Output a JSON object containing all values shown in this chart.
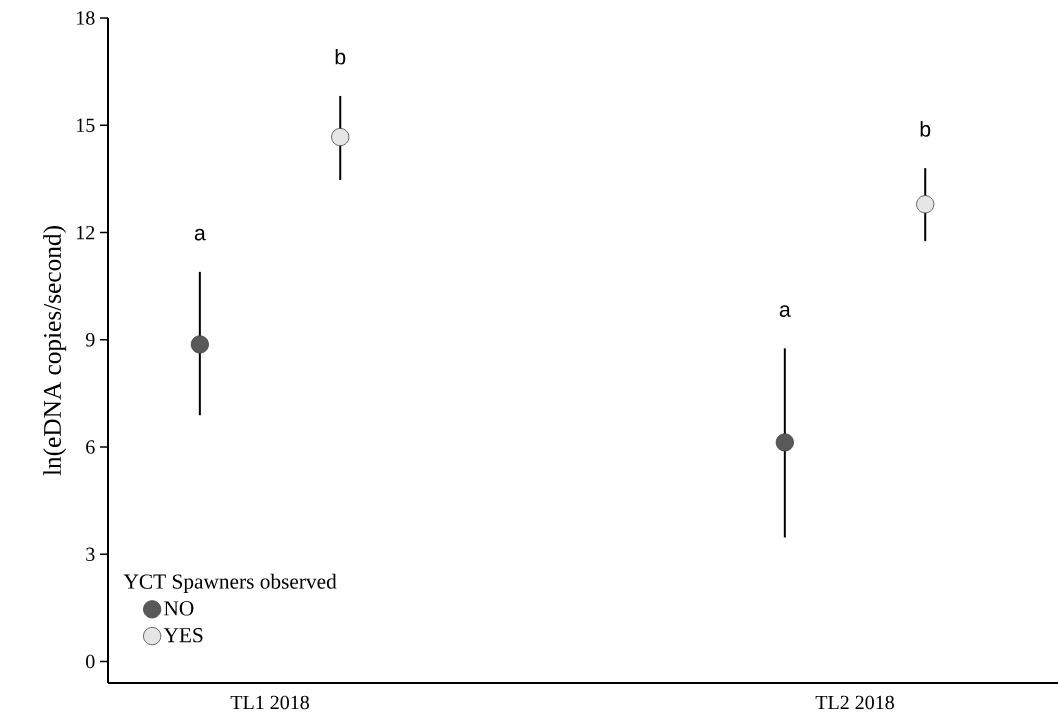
{
  "chart_data": {
    "type": "scatter",
    "ylabel": "ln(eDNA copies/second)",
    "legend_title": "YCT Spawners observed",
    "categories": [
      "TL1 2018",
      "TL2 2018"
    ],
    "series": [
      {
        "name": "NO",
        "color": "#595959",
        "values": [
          8.87,
          6.13
        ],
        "errors": [
          [
            6.89,
            10.9
          ],
          [
            3.47,
            8.76
          ]
        ]
      },
      {
        "name": "YES",
        "color": "#e6e6e6",
        "values": [
          14.67,
          12.79
        ],
        "errors": [
          [
            13.47,
            15.82
          ],
          [
            11.76,
            13.8
          ]
        ]
      }
    ],
    "ylim": [
      -0.6,
      18
    ],
    "yticks": [
      0,
      3,
      6,
      9,
      12,
      15,
      18
    ],
    "legend": "bottom left",
    "grid": false,
    "annotations": [
      "a",
      "b",
      "a",
      "b"
    ]
  }
}
